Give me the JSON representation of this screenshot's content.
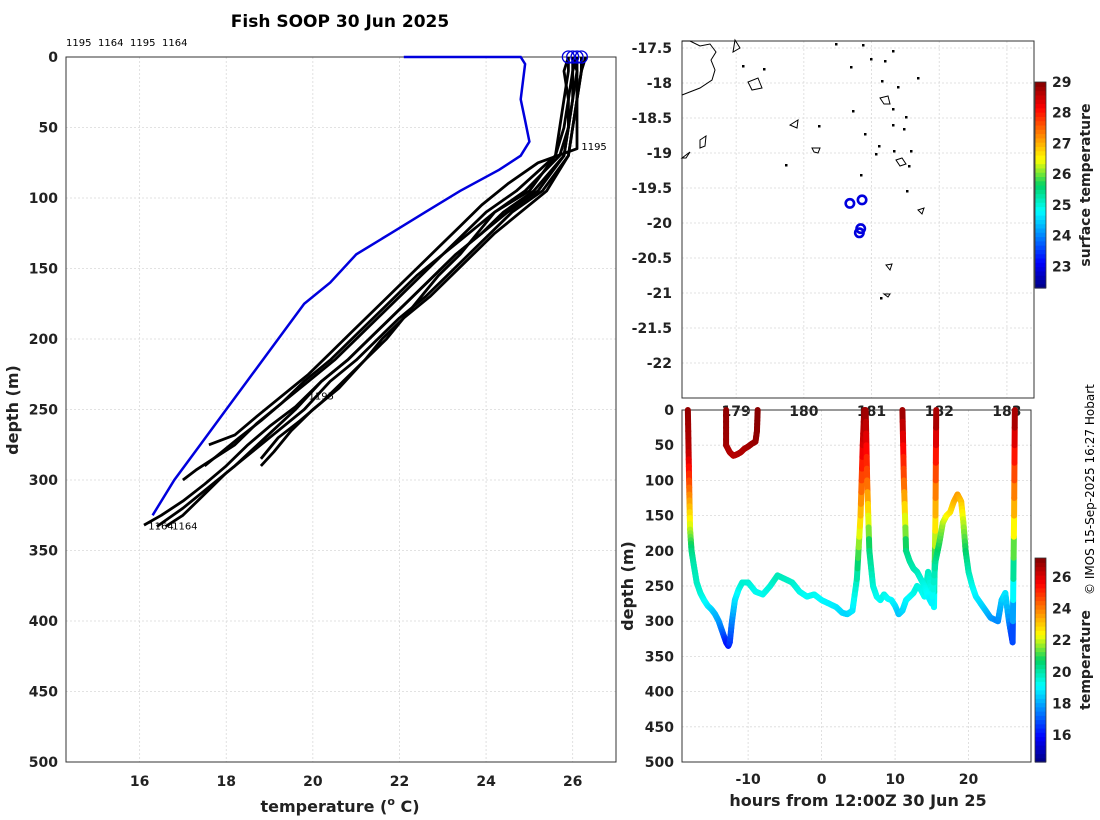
{
  "title": "Fish SOOP 30 Jun 2025",
  "credit": "© IMOS 15-Sep-2025 16:27 Hobart",
  "chart_data": [
    {
      "type": "line",
      "name": "temperature-depth-profiles",
      "xlabel": "temperature (",
      "xlabel_sup": "o",
      "xlabel_unit": " C)",
      "ylabel": "depth (m)",
      "xlim": [
        14.3,
        27.0
      ],
      "ylim": [
        500,
        0
      ],
      "xticks": [
        16,
        18,
        20,
        22,
        24,
        26
      ],
      "yticks": [
        0,
        50,
        100,
        150,
        200,
        250,
        300,
        350,
        400,
        450,
        500
      ],
      "top_annotations": [
        "1195",
        "1164",
        "1195",
        "1164"
      ],
      "annotations": [
        {
          "text": "1195",
          "x": 26.2,
          "y": 66
        },
        {
          "text": "1195",
          "x": 19.9,
          "y": 243
        },
        {
          "text": "1164",
          "x": 16.2,
          "y": 335
        },
        {
          "text": "1164",
          "x": 16.75,
          "y": 335
        }
      ],
      "climatology": {
        "name": "climatology",
        "color": "#0000dd",
        "x": [
          22.1,
          24.8,
          24.9,
          24.8,
          24.9,
          25.0,
          24.8,
          24.3,
          23.4,
          22.6,
          21.8,
          21.0,
          20.4,
          19.8,
          19.2,
          18.6,
          18.0,
          17.4,
          16.8,
          16.3
        ],
        "y": [
          0,
          0,
          5,
          30,
          45,
          60,
          70,
          80,
          95,
          110,
          125,
          140,
          160,
          175,
          200,
          225,
          250,
          275,
          300,
          325
        ]
      },
      "series": [
        {
          "name": "profile-1",
          "x": [
            25.9,
            25.8,
            25.9,
            25.8,
            25.6,
            25.0,
            24.2,
            23.8,
            23.4,
            22.9,
            22.5,
            22.1,
            21.6,
            21.2,
            20.6,
            20.0,
            19.5,
            19.1,
            18.8
          ],
          "y": [
            0,
            10,
            30,
            50,
            70,
            95,
            110,
            125,
            140,
            155,
            170,
            185,
            200,
            215,
            235,
            250,
            265,
            280,
            290
          ]
        },
        {
          "name": "profile-2",
          "x": [
            26.1,
            26.0,
            26.0,
            25.9,
            25.8,
            25.1,
            24.4,
            23.9,
            23.3,
            22.8,
            22.3,
            21.8,
            21.3,
            20.8,
            20.2,
            19.6,
            18.9,
            18.2,
            17.6,
            17.0,
            16.4
          ],
          "y": [
            0,
            10,
            30,
            50,
            70,
            95,
            110,
            125,
            140,
            155,
            170,
            185,
            200,
            215,
            230,
            250,
            270,
            290,
            305,
            320,
            333
          ]
        },
        {
          "name": "profile-3",
          "x": [
            26.2,
            26.2,
            26.1,
            26.0,
            25.9,
            25.3,
            24.6,
            24.1,
            23.6,
            23.1,
            22.6,
            22.0,
            21.5,
            21.0,
            20.4,
            19.8,
            19.2,
            18.6,
            18.0,
            17.5,
            17.0,
            16.6
          ],
          "y": [
            0,
            10,
            30,
            50,
            70,
            95,
            110,
            125,
            140,
            155,
            170,
            185,
            200,
            215,
            230,
            250,
            265,
            280,
            295,
            310,
            325,
            333
          ]
        },
        {
          "name": "profile-4",
          "x": [
            26.0,
            26.0,
            25.9,
            25.9,
            25.7,
            24.9,
            24.2,
            23.6,
            23.0,
            22.5,
            22.0,
            21.5,
            21.0,
            20.5,
            19.9,
            19.3,
            18.7,
            18.2,
            17.7,
            17.3,
            17.0
          ],
          "y": [
            0,
            10,
            30,
            50,
            70,
            95,
            110,
            125,
            140,
            155,
            170,
            185,
            200,
            215,
            230,
            245,
            260,
            275,
            285,
            293,
            300
          ]
        },
        {
          "name": "profile-5",
          "x": [
            25.9,
            25.9,
            25.8,
            25.7,
            25.6,
            24.7,
            24.0,
            23.5,
            23.0,
            22.4,
            21.9,
            21.4,
            20.9,
            20.4,
            19.8,
            19.3,
            18.8,
            18.3,
            17.9,
            17.5
          ],
          "y": [
            0,
            10,
            30,
            50,
            70,
            95,
            110,
            125,
            140,
            155,
            170,
            185,
            200,
            215,
            230,
            245,
            258,
            270,
            280,
            290
          ]
        },
        {
          "name": "profile-6",
          "x": [
            26.3,
            26.2,
            26.1,
            26.0,
            25.9,
            25.4,
            24.8,
            24.2,
            23.7,
            23.2,
            22.7,
            22.1,
            21.7,
            21.2,
            20.7,
            20.2,
            19.7,
            19.2,
            18.8
          ],
          "y": [
            0,
            10,
            30,
            50,
            70,
            95,
            110,
            125,
            140,
            155,
            170,
            185,
            200,
            215,
            230,
            245,
            258,
            270,
            285
          ]
        },
        {
          "name": "profile-7",
          "x": [
            26.0,
            26.1,
            26.0,
            25.9,
            25.8,
            25.2,
            24.5,
            23.9,
            23.3,
            22.8,
            22.3,
            21.8,
            21.3,
            20.8,
            20.2,
            19.6,
            19.0,
            18.5,
            18.0,
            17.5,
            17.0,
            16.5,
            16.1
          ],
          "y": [
            0,
            10,
            30,
            50,
            70,
            95,
            110,
            125,
            140,
            155,
            170,
            185,
            200,
            215,
            230,
            248,
            262,
            275,
            290,
            303,
            315,
            325,
            332
          ]
        },
        {
          "name": "profile-8",
          "x": [
            26.1,
            26.1,
            26.1,
            26.1,
            25.2,
            24.5,
            23.9,
            23.4,
            22.9,
            22.4,
            21.9,
            21.4,
            20.9,
            20.4,
            19.9,
            19.3,
            18.7,
            18.2,
            17.6
          ],
          "y": [
            0,
            10,
            30,
            65,
            75,
            90,
            105,
            120,
            135,
            150,
            165,
            180,
            195,
            210,
            225,
            240,
            255,
            268,
            275
          ]
        }
      ],
      "surface_markers": [
        25.9,
        26.0,
        26.1,
        26.2
      ]
    },
    {
      "type": "scatter",
      "name": "position-map",
      "xticks_visible": [
        "179",
        "180",
        "181",
        "182",
        "183"
      ],
      "yticks": [
        -17.5,
        -18,
        -18.5,
        -19,
        -19.5,
        -20,
        -20.5,
        -21,
        -21.5,
        -22
      ],
      "ylim": [
        -22.5,
        -17.4
      ],
      "xlim": [
        178.2,
        183.4
      ],
      "points": [
        {
          "lon": 180.68,
          "lat": -19.72
        },
        {
          "lon": 180.86,
          "lat": -19.67
        },
        {
          "lon": 180.84,
          "lat": -20.08
        },
        {
          "lon": 180.82,
          "lat": -20.14
        }
      ],
      "colorbar": {
        "label": "surface temperature",
        "min": 22.3,
        "max": 29.0,
        "ticks": [
          23,
          24,
          25,
          26,
          27,
          28,
          29
        ]
      }
    },
    {
      "type": "scatter",
      "name": "depth-time-section",
      "xlabel": "hours from 12:00Z 30 Jun 25",
      "ylabel": "depth (m)",
      "xlim": [
        -19,
        28.5
      ],
      "ylim": [
        500,
        0
      ],
      "xticks": [
        -10,
        0,
        10,
        20
      ],
      "yticks": [
        0,
        50,
        100,
        150,
        200,
        250,
        300,
        350,
        400,
        450,
        500
      ],
      "colorbar": {
        "label": "temperature",
        "min": 14.3,
        "max": 27.2,
        "ticks": [
          16,
          18,
          20,
          22,
          24,
          26
        ]
      },
      "casts": [
        {
          "name": "cast-a",
          "t": [
            -18.2,
            -18.1,
            -18.0,
            -17.9,
            -17.7,
            -17.4,
            -17.0,
            -16.5,
            -16.0,
            -15.5,
            -15.0,
            -14.5,
            -14.0,
            -13.5,
            -13.0,
            -12.7,
            -12.5,
            -12.2,
            -11.8,
            -11.3,
            -10.8,
            -10.0,
            -9.0,
            -8.0,
            -7.0,
            -6.0,
            -5.0,
            -4.0,
            -3.0,
            -2.0,
            -1.0,
            0.0,
            1.0,
            2.0,
            2.8,
            3.5,
            4.2,
            4.8,
            5.3,
            5.6,
            5.8
          ],
          "depth": [
            0,
            60,
            120,
            170,
            200,
            220,
            245,
            260,
            270,
            278,
            283,
            290,
            300,
            315,
            330,
            335,
            330,
            300,
            270,
            255,
            245,
            245,
            258,
            262,
            250,
            235,
            240,
            245,
            258,
            265,
            262,
            270,
            275,
            280,
            288,
            290,
            285,
            240,
            150,
            50,
            0
          ],
          "temp": [
            27.0,
            26.5,
            24.0,
            22.0,
            20.5,
            20.0,
            19.8,
            19.6,
            19.3,
            19.0,
            18.7,
            18.3,
            18.0,
            17.3,
            16.3,
            16.1,
            16.5,
            17.5,
            18.7,
            19.2,
            19.6,
            19.6,
            19.3,
            19.3,
            19.5,
            19.9,
            19.8,
            19.7,
            19.4,
            19.2,
            19.3,
            19.1,
            19.0,
            18.9,
            18.7,
            18.6,
            18.8,
            19.8,
            23.0,
            26.0,
            27.0
          ]
        },
        {
          "name": "cast-b",
          "t": [
            -13.0,
            -13.0,
            -12.5,
            -12.0,
            -11.5,
            -11.0,
            -10.5,
            -10.0,
            -9.5,
            -9.0,
            -8.8,
            -8.7
          ],
          "depth": [
            0,
            50,
            60,
            65,
            63,
            60,
            55,
            52,
            48,
            45,
            30,
            0
          ],
          "temp": [
            27.0,
            26.8,
            26.6,
            26.5,
            26.5,
            26.6,
            26.6,
            26.7,
            26.8,
            26.9,
            27.0,
            27.1
          ]
        },
        {
          "name": "cast-c",
          "t": [
            6.0,
            6.2,
            6.5,
            7.0,
            7.5,
            8.0,
            8.5,
            9.0,
            9.5,
            10.0,
            10.5,
            11.0,
            11.5,
            12.0,
            12.5,
            13.0,
            13.5,
            14.0,
            14.5,
            15.0,
            15.3,
            15.5,
            15.6
          ],
          "depth": [
            0,
            100,
            200,
            250,
            265,
            270,
            262,
            268,
            270,
            278,
            290,
            285,
            270,
            265,
            260,
            250,
            255,
            265,
            230,
            260,
            280,
            150,
            0
          ],
          "temp": [
            27.0,
            24.5,
            20.5,
            19.6,
            19.3,
            19.2,
            19.4,
            19.2,
            19.1,
            18.9,
            18.4,
            18.6,
            19.0,
            19.1,
            19.3,
            19.5,
            19.4,
            19.2,
            19.8,
            19.3,
            18.8,
            23.0,
            27.0
          ]
        },
        {
          "name": "cast-d",
          "t": [
            11.0,
            11.2,
            11.5,
            12.0,
            12.5,
            13.0,
            13.5,
            14.0,
            14.5,
            15.0,
            15.5,
            16.0,
            16.5,
            17.0,
            17.5,
            18.0,
            18.5,
            19.0,
            19.3,
            19.6,
            20.0,
            20.5,
            21.0,
            22.0,
            23.0,
            24.0,
            24.5,
            25.0,
            25.5,
            26.0,
            26.2,
            26.3
          ],
          "depth": [
            0,
            100,
            200,
            215,
            225,
            230,
            240,
            250,
            265,
            275,
            215,
            190,
            160,
            150,
            145,
            130,
            120,
            130,
            160,
            200,
            230,
            250,
            265,
            280,
            295,
            300,
            270,
            260,
            300,
            330,
            150,
            0
          ],
          "temp": [
            27.0,
            24.5,
            20.5,
            20.2,
            20.0,
            19.9,
            19.6,
            19.4,
            19.1,
            18.9,
            20.2,
            20.9,
            21.8,
            22.3,
            22.6,
            23.2,
            23.6,
            23.2,
            22.0,
            20.8,
            20.0,
            19.4,
            19.0,
            18.6,
            18.0,
            17.6,
            18.4,
            18.9,
            17.8,
            16.3,
            23.0,
            27.0
          ]
        }
      ]
    }
  ]
}
